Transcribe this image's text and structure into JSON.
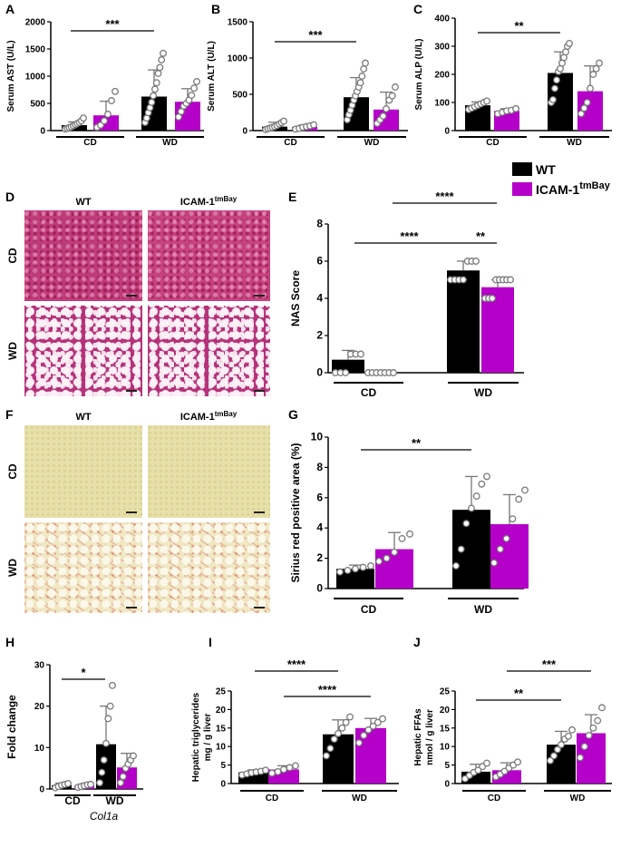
{
  "colors": {
    "wt": "#000000",
    "ko": "#b400c8",
    "point_fill": "#ffffff",
    "point_stroke": "#7a7a7a"
  },
  "legend": {
    "wt": "WT",
    "ko_base": "ICAM-1",
    "ko_sup": "tmBay"
  },
  "micrographs": {
    "D": {
      "col_wt": "WT",
      "col_ko_base": "ICAM-1",
      "col_ko_sup": "tmBay",
      "row_cd": "CD",
      "row_wd": "WD"
    },
    "F": {
      "col_wt": "WT",
      "col_ko_base": "ICAM-1",
      "col_ko_sup": "tmBay",
      "row_cd": "CD",
      "row_wd": "WD"
    }
  },
  "chart_data": [
    {
      "panel": "A",
      "type": "bar",
      "ylabel": "Serum AST (U/L)",
      "ylim": [
        0,
        2000
      ],
      "yticks": [
        0,
        500,
        1000,
        1500,
        2000
      ],
      "categories": [
        "CD",
        "WD"
      ],
      "series": [
        {
          "name": "WT",
          "values": [
            100,
            625
          ],
          "sd": [
            60,
            490
          ],
          "points": [
            [
              30,
              40,
              55,
              70,
              90,
              110,
              130,
              150,
              180,
              230
            ],
            [
              150,
              230,
              330,
              420,
              520,
              640,
              760,
              880,
              1050,
              1160,
              1300,
              1420
            ]
          ]
        },
        {
          "name": "ICAM-1tmBay",
          "values": [
            280,
            530
          ],
          "sd": [
            260,
            240
          ],
          "points": [
            [
              60,
              100,
              180,
              300,
              550,
              720
            ],
            [
              250,
              350,
              450,
              500,
              560,
              650,
              780,
              900
            ]
          ]
        }
      ],
      "sig": [
        {
          "text": "***"
        }
      ]
    },
    {
      "panel": "B",
      "type": "bar",
      "ylabel": "Serum ALT (U/L)",
      "ylim": [
        0,
        1500
      ],
      "yticks": [
        0,
        500,
        1000,
        1500
      ],
      "categories": [
        "CD",
        "WD"
      ],
      "series": [
        {
          "name": "WT",
          "values": [
            55,
            460
          ],
          "sd": [
            60,
            270
          ],
          "points": [
            [
              15,
              25,
              35,
              45,
              55,
              70,
              90,
              110,
              130
            ],
            [
              150,
              220,
              280,
              350,
              420,
              480,
              540,
              600,
              660,
              750,
              850,
              930
            ]
          ]
        },
        {
          "name": "ICAM-1tmBay",
          "values": [
            50,
            290
          ],
          "sd": [
            25,
            240
          ],
          "points": [
            [
              20,
              30,
              45,
              55,
              65,
              80
            ],
            [
              100,
              150,
              200,
              300,
              420,
              480,
              600
            ]
          ]
        }
      ],
      "sig": [
        {
          "text": "***"
        }
      ]
    },
    {
      "panel": "C",
      "type": "bar",
      "ylabel": "Serum ALP (U/L)",
      "ylim": [
        0,
        400
      ],
      "yticks": [
        0,
        100,
        200,
        300,
        400
      ],
      "categories": [
        "CD",
        "WD"
      ],
      "series": [
        {
          "name": "WT",
          "values": [
            90,
            205
          ],
          "sd": [
            12,
            75
          ],
          "points": [
            [
              75,
              80,
              85,
              90,
              95,
              100,
              105
            ],
            [
              100,
              110,
              150,
              180,
              210,
              220,
              240,
              260,
              280,
              300,
              310
            ]
          ]
        },
        {
          "name": "ICAM-1tmBay",
          "values": [
            70,
            140
          ],
          "sd": [
            8,
            90
          ],
          "points": [
            [
              60,
              65,
              70,
              72,
              78
            ],
            [
              60,
              80,
              100,
              150,
              200,
              220,
              240
            ]
          ]
        }
      ],
      "sig": [
        {
          "text": "**"
        }
      ]
    },
    {
      "panel": "E",
      "type": "bar",
      "ylabel": "NAS Score",
      "ylim": [
        0,
        8
      ],
      "yticks": [
        0,
        2,
        4,
        6,
        8
      ],
      "categories": [
        "CD",
        "WD"
      ],
      "series": [
        {
          "name": "WT",
          "values": [
            0.7,
            5.5
          ],
          "sd": [
            0.5,
            0.5
          ],
          "points": [
            [
              0,
              0,
              0,
              1,
              1,
              1
            ],
            [
              5,
              5,
              5,
              5,
              6,
              6,
              6
            ]
          ]
        },
        {
          "name": "ICAM-1tmBay",
          "values": [
            0,
            4.6
          ],
          "sd": [
            0,
            0.4
          ],
          "points": [
            [
              0,
              0,
              0,
              0,
              0,
              0,
              0
            ],
            [
              4,
              4,
              4,
              5,
              5,
              5,
              5,
              5
            ]
          ]
        }
      ],
      "sig": [
        {
          "text": "****"
        },
        {
          "text": "**"
        },
        {
          "text": "****"
        }
      ]
    },
    {
      "panel": "G",
      "type": "bar",
      "ylabel": "Sirius red positive area (%)",
      "ylim": [
        0,
        10
      ],
      "yticks": [
        0,
        2,
        4,
        6,
        8,
        10
      ],
      "categories": [
        "CD",
        "WD"
      ],
      "series": [
        {
          "name": "WT",
          "values": [
            1.3,
            5.2
          ],
          "sd": [
            0.25,
            2.2
          ],
          "points": [
            [
              1.1,
              1.2,
              1.3,
              1.4,
              1.5
            ],
            [
              1.5,
              2.6,
              4.3,
              5.3,
              6.1,
              6.9,
              7.4
            ]
          ]
        },
        {
          "name": "ICAM-1tmBay",
          "values": [
            2.6,
            4.25
          ],
          "sd": [
            1.1,
            1.95
          ],
          "points": [
            [
              1.8,
              2.0,
              2.4,
              3.3,
              3.6
            ],
            [
              1.7,
              2.6,
              3.3,
              4.6,
              5.9,
              6.5
            ]
          ]
        }
      ],
      "sig": [
        {
          "text": "**"
        }
      ]
    },
    {
      "panel": "H",
      "type": "bar",
      "ylabel": "Fold change",
      "xlabel": "Col1a",
      "ylim": [
        0,
        30
      ],
      "yticks": [
        0,
        10,
        20,
        30
      ],
      "categories": [
        "CD",
        "WD"
      ],
      "series": [
        {
          "name": "WT",
          "values": [
            0.9,
            10.8
          ],
          "sd": [
            0.5,
            9.2
          ],
          "points": [
            [
              0.3,
              0.6,
              0.9,
              1.1,
              1.3
            ],
            [
              1.5,
              4,
              7,
              11,
              17,
              20,
              25
            ]
          ]
        },
        {
          "name": "ICAM-1tmBay",
          "values": [
            0.8,
            5.2
          ],
          "sd": [
            0.3,
            3.4
          ],
          "points": [
            [
              0.4,
              0.6,
              0.8,
              1.0,
              1.1
            ],
            [
              1.5,
              3,
              5,
              6,
              7,
              8
            ]
          ]
        }
      ],
      "sig": [
        {
          "text": "*"
        }
      ]
    },
    {
      "panel": "I",
      "type": "bar",
      "ylabel": "Hepatic triglycerides mg / g liver",
      "ylim": [
        0,
        25
      ],
      "yticks": [
        0,
        5,
        10,
        15,
        20,
        25
      ],
      "categories": [
        "CD",
        "WD"
      ],
      "series": [
        {
          "name": "WT",
          "values": [
            3.0,
            13.3
          ],
          "sd": [
            0.7,
            3.9
          ],
          "points": [
            [
              2.3,
              2.6,
              2.9,
              3.1,
              3.3,
              3.6
            ],
            [
              7.5,
              9.5,
              12,
              13.5,
              15,
              16.5,
              18
            ]
          ]
        },
        {
          "name": "ICAM-1tmBay",
          "values": [
            3.8,
            15.0
          ],
          "sd": [
            1.0,
            2.6
          ],
          "points": [
            [
              2.8,
              3.2,
              3.8,
              4.3,
              4.8
            ],
            [
              11,
              13,
              14.5,
              15.5,
              16.5,
              17.5
            ]
          ]
        }
      ],
      "sig": [
        {
          "text": "****"
        },
        {
          "text": "****"
        }
      ]
    },
    {
      "panel": "J",
      "type": "bar",
      "ylabel": "Hepatic FFAs nmol / g liver",
      "ylim": [
        0,
        25
      ],
      "yticks": [
        0,
        5,
        10,
        15,
        20,
        25
      ],
      "categories": [
        "CD",
        "WD"
      ],
      "series": [
        {
          "name": "WT",
          "values": [
            3.2,
            10.5
          ],
          "sd": [
            2.0,
            3.6
          ],
          "points": [
            [
              1.3,
              2.2,
              3.0,
              3.6,
              4.6,
              5.5
            ],
            [
              6.2,
              7.5,
              9.2,
              10.5,
              12,
              12.8,
              14.5
            ]
          ]
        },
        {
          "name": "ICAM-1tmBay",
          "values": [
            3.6,
            13.6
          ],
          "sd": [
            2.0,
            5.0
          ],
          "points": [
            [
              1.8,
              2.5,
              3.3,
              4.2,
              5.0,
              5.8
            ],
            [
              7,
              10,
              13,
              15,
              17,
              20.5
            ]
          ]
        }
      ],
      "sig": [
        {
          "text": "**"
        },
        {
          "text": "***"
        }
      ]
    }
  ]
}
